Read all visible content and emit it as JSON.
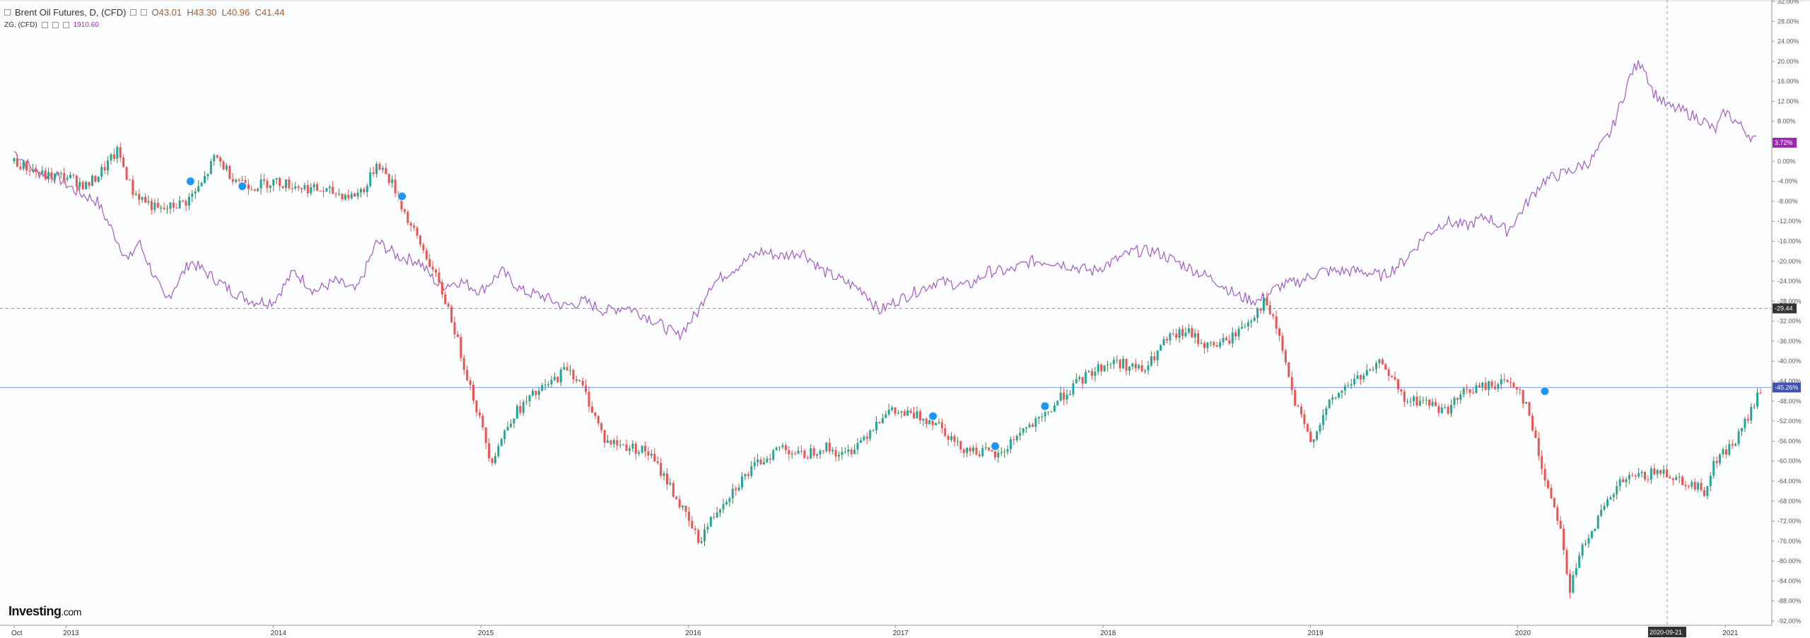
{
  "legend": {
    "title": "Brent Oil Futures, D, (CFD)",
    "o_label": "O",
    "o_value": "43.01",
    "h_label": "H",
    "h_value": "43.30",
    "l_label": "L",
    "l_value": "40.96",
    "c_label": "C",
    "c_value": "41.44",
    "zg_title": "ZG, (CFD)",
    "zg_value": "1910.60"
  },
  "brand": {
    "name": "Investing",
    "domain": ".com"
  },
  "tags": {
    "zg_last": "3.72%",
    "crosshair_y": "-29.44",
    "brent_last": "-45.26%",
    "crosshair_x": "2020-09-21"
  },
  "colors": {
    "brent_up": "#26a69a",
    "brent_down": "#ef5350",
    "brent_body": "#4e7d3e",
    "zg_line": "#a25bc0",
    "zg_tag": "#9c27b0",
    "brent_tag": "#3f51b5",
    "crosshair_tag": "#333333",
    "marker": "#2196f3"
  },
  "chart_data": {
    "type": "line",
    "y_axis_unit": "%",
    "ylim": [
      -92,
      32
    ],
    "y_ticks": [
      "32.00%",
      "28.00%",
      "24.00%",
      "20.00%",
      "16.00%",
      "12.00%",
      "8.00%",
      "4.00%",
      "0.00%",
      "-4.00%",
      "-8.00%",
      "-12.00%",
      "-16.00%",
      "-20.00%",
      "-24.00%",
      "-28.00%",
      "-32.00%",
      "-36.00%",
      "-40.00%",
      "-44.00%",
      "-48.00%",
      "-52.00%",
      "-56.00%",
      "-60.00%",
      "-64.00%",
      "-68.00%",
      "-72.00%",
      "-76.00%",
      "-80.00%",
      "-84.00%",
      "-88.00%",
      "-92.00%"
    ],
    "x_ticks": [
      "Oct",
      "2013",
      "2014",
      "2015",
      "2016",
      "2017",
      "2018",
      "2019",
      "2020",
      "2021"
    ],
    "series": [
      {
        "name": "Brent Oil Futures, D, (CFD)",
        "style": "candlestick",
        "points": [
          [
            2012.75,
            0
          ],
          [
            2012.9,
            -3
          ],
          [
            2013.0,
            -3
          ],
          [
            2013.1,
            -5
          ],
          [
            2013.15,
            -3
          ],
          [
            2013.25,
            2
          ],
          [
            2013.32,
            -6
          ],
          [
            2013.45,
            -10
          ],
          [
            2013.58,
            -8
          ],
          [
            2013.65,
            -5
          ],
          [
            2013.72,
            1
          ],
          [
            2013.8,
            -3
          ],
          [
            2013.9,
            -5
          ],
          [
            2014.0,
            -4
          ],
          [
            2014.12,
            -5
          ],
          [
            2014.25,
            -6
          ],
          [
            2014.38,
            -7
          ],
          [
            2014.45,
            -5
          ],
          [
            2014.5,
            0
          ],
          [
            2014.58,
            -5
          ],
          [
            2014.65,
            -12
          ],
          [
            2014.75,
            -20
          ],
          [
            2014.85,
            -30
          ],
          [
            2014.9,
            -38
          ],
          [
            2014.97,
            -48
          ],
          [
            2015.05,
            -60
          ],
          [
            2015.15,
            -51
          ],
          [
            2015.25,
            -47
          ],
          [
            2015.35,
            -44
          ],
          [
            2015.42,
            -41
          ],
          [
            2015.5,
            -46
          ],
          [
            2015.6,
            -56
          ],
          [
            2015.7,
            -57
          ],
          [
            2015.8,
            -58
          ],
          [
            2015.9,
            -64
          ],
          [
            2016.05,
            -76
          ],
          [
            2016.15,
            -69
          ],
          [
            2016.25,
            -64
          ],
          [
            2016.35,
            -60
          ],
          [
            2016.45,
            -57
          ],
          [
            2016.55,
            -59
          ],
          [
            2016.65,
            -57
          ],
          [
            2016.75,
            -59
          ],
          [
            2016.85,
            -55
          ],
          [
            2016.95,
            -50
          ],
          [
            2017.1,
            -51
          ],
          [
            2017.2,
            -52
          ],
          [
            2017.3,
            -57
          ],
          [
            2017.4,
            -58
          ],
          [
            2017.5,
            -59
          ],
          [
            2017.6,
            -54
          ],
          [
            2017.7,
            -52
          ],
          [
            2017.8,
            -47
          ],
          [
            2017.95,
            -42
          ],
          [
            2018.05,
            -40
          ],
          [
            2018.2,
            -42
          ],
          [
            2018.3,
            -36
          ],
          [
            2018.4,
            -34
          ],
          [
            2018.5,
            -37
          ],
          [
            2018.6,
            -36
          ],
          [
            2018.7,
            -32
          ],
          [
            2018.78,
            -28
          ],
          [
            2018.85,
            -35
          ],
          [
            2018.92,
            -48
          ],
          [
            2019.0,
            -56
          ],
          [
            2019.1,
            -48
          ],
          [
            2019.2,
            -44
          ],
          [
            2019.3,
            -42
          ],
          [
            2019.35,
            -40
          ],
          [
            2019.45,
            -48
          ],
          [
            2019.55,
            -48
          ],
          [
            2019.65,
            -50
          ],
          [
            2019.75,
            -46
          ],
          [
            2019.85,
            -45
          ],
          [
            2019.95,
            -44
          ],
          [
            2020.0,
            -45
          ],
          [
            2020.05,
            -50
          ],
          [
            2020.12,
            -62
          ],
          [
            2020.2,
            -72
          ],
          [
            2020.25,
            -86
          ],
          [
            2020.32,
            -76
          ],
          [
            2020.38,
            -72
          ],
          [
            2020.5,
            -64
          ],
          [
            2020.6,
            -63
          ],
          [
            2020.7,
            -62
          ],
          [
            2020.8,
            -64
          ],
          [
            2020.9,
            -66
          ],
          [
            2020.95,
            -60
          ],
          [
            2021.05,
            -56
          ],
          [
            2021.1,
            -52
          ],
          [
            2021.17,
            -46
          ]
        ]
      },
      {
        "name": "ZG, (CFD)",
        "style": "line",
        "points": [
          [
            2012.75,
            2
          ],
          [
            2012.85,
            -2
          ],
          [
            2012.95,
            -3
          ],
          [
            2013.05,
            -6
          ],
          [
            2013.15,
            -8
          ],
          [
            2013.25,
            -16
          ],
          [
            2013.3,
            -20
          ],
          [
            2013.35,
            -16
          ],
          [
            2013.48,
            -28
          ],
          [
            2013.6,
            -20
          ],
          [
            2013.7,
            -23
          ],
          [
            2013.8,
            -26
          ],
          [
            2013.9,
            -28
          ],
          [
            2014.0,
            -28
          ],
          [
            2014.1,
            -22
          ],
          [
            2014.2,
            -26
          ],
          [
            2014.3,
            -24
          ],
          [
            2014.4,
            -26
          ],
          [
            2014.5,
            -16
          ],
          [
            2014.6,
            -19
          ],
          [
            2014.7,
            -20
          ],
          [
            2014.8,
            -25
          ],
          [
            2014.9,
            -24
          ],
          [
            2015.0,
            -26
          ],
          [
            2015.1,
            -22
          ],
          [
            2015.2,
            -26
          ],
          [
            2015.3,
            -27
          ],
          [
            2015.4,
            -29
          ],
          [
            2015.5,
            -28
          ],
          [
            2015.6,
            -30
          ],
          [
            2015.7,
            -29
          ],
          [
            2015.8,
            -31
          ],
          [
            2015.88,
            -33
          ],
          [
            2015.95,
            -35
          ],
          [
            2016.05,
            -30
          ],
          [
            2016.1,
            -25
          ],
          [
            2016.2,
            -22
          ],
          [
            2016.35,
            -18
          ],
          [
            2016.45,
            -19
          ],
          [
            2016.55,
            -18
          ],
          [
            2016.65,
            -22
          ],
          [
            2016.75,
            -24
          ],
          [
            2016.85,
            -26
          ],
          [
            2016.92,
            -30
          ],
          [
            2017.0,
            -28
          ],
          [
            2017.1,
            -26
          ],
          [
            2017.2,
            -24
          ],
          [
            2017.35,
            -25
          ],
          [
            2017.45,
            -22
          ],
          [
            2017.55,
            -22
          ],
          [
            2017.65,
            -20
          ],
          [
            2017.75,
            -20
          ],
          [
            2017.85,
            -21
          ],
          [
            2017.95,
            -22
          ],
          [
            2018.05,
            -20
          ],
          [
            2018.15,
            -18
          ],
          [
            2018.25,
            -18
          ],
          [
            2018.35,
            -20
          ],
          [
            2018.45,
            -22
          ],
          [
            2018.55,
            -24
          ],
          [
            2018.65,
            -27
          ],
          [
            2018.75,
            -28
          ],
          [
            2018.85,
            -25
          ],
          [
            2018.95,
            -24
          ],
          [
            2019.05,
            -22
          ],
          [
            2019.15,
            -22
          ],
          [
            2019.25,
            -22
          ],
          [
            2019.35,
            -23
          ],
          [
            2019.45,
            -20
          ],
          [
            2019.55,
            -15
          ],
          [
            2019.65,
            -12
          ],
          [
            2019.75,
            -13
          ],
          [
            2019.85,
            -11
          ],
          [
            2019.95,
            -14
          ],
          [
            2020.0,
            -11
          ],
          [
            2020.05,
            -8
          ],
          [
            2020.12,
            -4
          ],
          [
            2020.18,
            -3
          ],
          [
            2020.25,
            -2
          ],
          [
            2020.35,
            0
          ],
          [
            2020.45,
            6
          ],
          [
            2020.55,
            18
          ],
          [
            2020.6,
            20
          ],
          [
            2020.65,
            14
          ],
          [
            2020.72,
            11
          ],
          [
            2020.8,
            10
          ],
          [
            2020.9,
            8
          ],
          [
            2020.95,
            6
          ],
          [
            2021.0,
            10
          ],
          [
            2021.05,
            8
          ],
          [
            2021.1,
            6
          ],
          [
            2021.15,
            4
          ]
        ]
      }
    ]
  }
}
